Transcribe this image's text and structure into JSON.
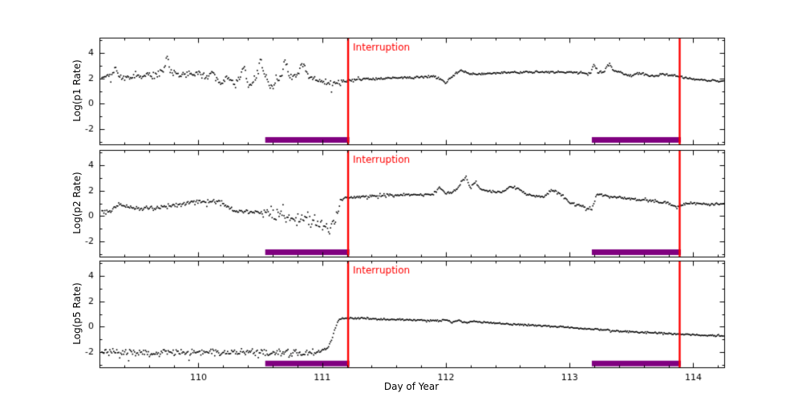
{
  "figure": {
    "background": "#ffffff",
    "xlabel": "Day of Year",
    "annotation_label": "Interruption",
    "x_range": [
      109.2,
      114.25
    ],
    "x_ticks": [
      110,
      111,
      112,
      113,
      114
    ],
    "x_minor_tick_step": 0.2,
    "y_minor_tick_step": 1,
    "x_data_start": 109.22,
    "point_step": 0.008,
    "colors": {
      "data": "#000000",
      "interruption_line": "#fe0000",
      "annotation_text": "#fe0000",
      "coverage_bar": "#800080",
      "frame": "#000000"
    }
  },
  "chart_data": [
    {
      "type": "scatter",
      "ylabel": "Log(p1 Rate)",
      "y_range": [
        -3.2,
        5.2
      ],
      "y_ticks": [
        -2,
        0,
        2,
        4
      ],
      "interruption_lines_x": [
        111.21,
        113.89
      ],
      "coverage_bars": [
        [
          110.54,
          111.22
        ],
        [
          113.18,
          113.9
        ]
      ],
      "coverage_bar_y": -2.85,
      "noise": [
        {
          "until": 111.18,
          "amp": 0.16
        },
        {
          "until": 114.3,
          "amp": 0.05
        }
      ],
      "series_keypoints": [
        [
          109.2,
          2.1
        ],
        [
          109.3,
          2.2
        ],
        [
          109.33,
          3.0
        ],
        [
          109.36,
          2.1
        ],
        [
          109.45,
          2.0
        ],
        [
          109.5,
          2.3
        ],
        [
          109.55,
          2.2
        ],
        [
          109.6,
          2.4
        ],
        [
          109.63,
          2.2
        ],
        [
          109.68,
          2.3
        ],
        [
          109.72,
          2.5
        ],
        [
          109.75,
          3.9
        ],
        [
          109.77,
          2.5
        ],
        [
          109.85,
          2.3
        ],
        [
          109.95,
          2.3
        ],
        [
          110.0,
          2.5
        ],
        [
          110.03,
          2.2
        ],
        [
          110.08,
          2.1
        ],
        [
          110.12,
          2.5
        ],
        [
          110.15,
          1.8
        ],
        [
          110.2,
          1.6
        ],
        [
          110.23,
          2.2
        ],
        [
          110.27,
          1.9
        ],
        [
          110.3,
          1.5
        ],
        [
          110.33,
          2.1
        ],
        [
          110.37,
          3.0
        ],
        [
          110.4,
          1.6
        ],
        [
          110.43,
          1.4
        ],
        [
          110.47,
          2.2
        ],
        [
          110.5,
          3.6
        ],
        [
          110.53,
          2.4
        ],
        [
          110.57,
          1.6
        ],
        [
          110.6,
          1.1
        ],
        [
          110.63,
          1.9
        ],
        [
          110.67,
          2.2
        ],
        [
          110.7,
          3.4
        ],
        [
          110.73,
          2.4
        ],
        [
          110.77,
          2.1
        ],
        [
          110.8,
          2.2
        ],
        [
          110.83,
          2.9
        ],
        [
          110.85,
          3.3
        ],
        [
          110.88,
          2.3
        ],
        [
          110.92,
          2.0
        ],
        [
          110.95,
          1.9
        ],
        [
          111.0,
          1.75
        ],
        [
          111.05,
          1.7
        ],
        [
          111.1,
          1.65
        ],
        [
          111.15,
          1.7
        ],
        [
          111.2,
          1.8
        ],
        [
          111.25,
          1.85
        ],
        [
          111.35,
          1.95
        ],
        [
          111.5,
          2.0
        ],
        [
          111.65,
          2.05
        ],
        [
          111.8,
          2.1
        ],
        [
          111.9,
          2.15
        ],
        [
          111.97,
          1.9
        ],
        [
          112.0,
          1.6
        ],
        [
          112.03,
          2.0
        ],
        [
          112.07,
          2.3
        ],
        [
          112.12,
          2.6
        ],
        [
          112.18,
          2.4
        ],
        [
          112.25,
          2.3
        ],
        [
          112.35,
          2.4
        ],
        [
          112.5,
          2.45
        ],
        [
          112.65,
          2.5
        ],
        [
          112.8,
          2.5
        ],
        [
          112.95,
          2.5
        ],
        [
          113.1,
          2.45
        ],
        [
          113.17,
          2.4
        ],
        [
          113.2,
          3.1
        ],
        [
          113.23,
          2.4
        ],
        [
          113.28,
          2.5
        ],
        [
          113.32,
          3.3
        ],
        [
          113.35,
          2.6
        ],
        [
          113.4,
          2.5
        ],
        [
          113.45,
          2.3
        ],
        [
          113.5,
          2.2
        ],
        [
          113.55,
          2.4
        ],
        [
          113.6,
          2.35
        ],
        [
          113.65,
          2.2
        ],
        [
          113.7,
          2.15
        ],
        [
          113.75,
          2.3
        ],
        [
          113.8,
          2.25
        ],
        [
          113.85,
          2.2
        ],
        [
          113.9,
          2.1
        ],
        [
          114.0,
          1.95
        ],
        [
          114.1,
          1.85
        ],
        [
          114.25,
          1.75
        ]
      ]
    },
    {
      "type": "scatter",
      "ylabel": "Log(p2 Rate)",
      "y_range": [
        -3.2,
        5.2
      ],
      "y_ticks": [
        -2,
        0,
        2,
        4
      ],
      "interruption_lines_x": [
        111.21,
        113.89
      ],
      "coverage_bars": [
        [
          110.54,
          111.22
        ],
        [
          113.18,
          113.9
        ]
      ],
      "coverage_bar_y": -2.85,
      "noise": [
        {
          "until": 110.55,
          "amp": 0.1
        },
        {
          "until": 111.13,
          "amp": 0.3
        },
        {
          "until": 114.3,
          "amp": 0.06
        }
      ],
      "series_keypoints": [
        [
          109.2,
          0.2
        ],
        [
          109.3,
          0.4
        ],
        [
          109.35,
          0.9
        ],
        [
          109.4,
          0.8
        ],
        [
          109.5,
          0.55
        ],
        [
          109.6,
          0.6
        ],
        [
          109.7,
          0.7
        ],
        [
          109.8,
          0.8
        ],
        [
          109.9,
          1.05
        ],
        [
          110.0,
          1.2
        ],
        [
          110.05,
          1.15
        ],
        [
          110.1,
          1.1
        ],
        [
          110.15,
          1.15
        ],
        [
          110.2,
          1.0
        ],
        [
          110.25,
          0.6
        ],
        [
          110.3,
          0.4
        ],
        [
          110.4,
          0.3
        ],
        [
          110.5,
          0.35
        ],
        [
          110.55,
          0.3
        ],
        [
          110.6,
          0.15
        ],
        [
          110.65,
          0.0
        ],
        [
          110.7,
          -0.1
        ],
        [
          110.75,
          -0.25
        ],
        [
          110.8,
          -0.3
        ],
        [
          110.85,
          -0.2
        ],
        [
          110.9,
          -0.4
        ],
        [
          110.95,
          -0.55
        ],
        [
          111.0,
          -0.8
        ],
        [
          111.05,
          -1.0
        ],
        [
          111.08,
          -0.9
        ],
        [
          111.1,
          -0.6
        ],
        [
          111.12,
          -0.2
        ],
        [
          111.15,
          1.3
        ],
        [
          111.2,
          1.45
        ],
        [
          111.3,
          1.5
        ],
        [
          111.4,
          1.55
        ],
        [
          111.5,
          1.65
        ],
        [
          111.6,
          1.6
        ],
        [
          111.7,
          1.7
        ],
        [
          111.8,
          1.65
        ],
        [
          111.9,
          1.75
        ],
        [
          111.95,
          2.2
        ],
        [
          112.0,
          1.8
        ],
        [
          112.05,
          1.9
        ],
        [
          112.1,
          2.2
        ],
        [
          112.13,
          2.8
        ],
        [
          112.16,
          3.0
        ],
        [
          112.2,
          2.2
        ],
        [
          112.24,
          2.7
        ],
        [
          112.28,
          2.1
        ],
        [
          112.35,
          1.95
        ],
        [
          112.45,
          1.85
        ],
        [
          112.52,
          2.3
        ],
        [
          112.58,
          2.2
        ],
        [
          112.65,
          1.7
        ],
        [
          112.72,
          1.55
        ],
        [
          112.8,
          1.5
        ],
        [
          112.85,
          2.1
        ],
        [
          112.9,
          1.9
        ],
        [
          112.95,
          1.5
        ],
        [
          113.0,
          1.05
        ],
        [
          113.05,
          0.9
        ],
        [
          113.1,
          0.8
        ],
        [
          113.15,
          0.55
        ],
        [
          113.18,
          0.5
        ],
        [
          113.22,
          1.7
        ],
        [
          113.3,
          1.55
        ],
        [
          113.4,
          1.45
        ],
        [
          113.5,
          1.35
        ],
        [
          113.6,
          1.25
        ],
        [
          113.7,
          1.15
        ],
        [
          113.8,
          1.0
        ],
        [
          113.85,
          0.75
        ],
        [
          113.9,
          0.85
        ],
        [
          113.95,
          1.0
        ],
        [
          114.05,
          1.0
        ],
        [
          114.15,
          0.9
        ],
        [
          114.25,
          1.0
        ]
      ]
    },
    {
      "type": "scatter",
      "ylabel": "Log(p5 Rate)",
      "y_range": [
        -3.2,
        5.2
      ],
      "y_ticks": [
        -2,
        0,
        2,
        4
      ],
      "interruption_lines_x": [
        111.21,
        113.89
      ],
      "coverage_bars": [
        [
          110.54,
          111.22
        ],
        [
          113.18,
          113.9
        ]
      ],
      "coverage_bar_y": -2.9,
      "noise": [
        {
          "until": 111.02,
          "amp": 0.17
        },
        {
          "until": 114.3,
          "amp": 0.04
        }
      ],
      "series_keypoints": [
        [
          109.2,
          -2.0
        ],
        [
          109.6,
          -2.05
        ],
        [
          110.0,
          -2.05
        ],
        [
          110.4,
          -2.0
        ],
        [
          110.7,
          -2.05
        ],
        [
          110.9,
          -2.05
        ],
        [
          111.0,
          -2.0
        ],
        [
          111.05,
          -1.6
        ],
        [
          111.08,
          -1.0
        ],
        [
          111.1,
          -0.3
        ],
        [
          111.13,
          0.5
        ],
        [
          111.17,
          0.65
        ],
        [
          111.25,
          0.7
        ],
        [
          111.4,
          0.6
        ],
        [
          111.6,
          0.55
        ],
        [
          111.8,
          0.5
        ],
        [
          111.95,
          0.45
        ],
        [
          112.0,
          0.55
        ],
        [
          112.05,
          0.35
        ],
        [
          112.1,
          0.5
        ],
        [
          112.15,
          0.3
        ],
        [
          112.2,
          0.4
        ],
        [
          112.3,
          0.35
        ],
        [
          112.4,
          0.3
        ],
        [
          112.5,
          0.2
        ],
        [
          112.6,
          0.15
        ],
        [
          112.7,
          0.1
        ],
        [
          112.8,
          0.05
        ],
        [
          112.9,
          0.0
        ],
        [
          113.0,
          -0.05
        ],
        [
          113.1,
          -0.15
        ],
        [
          113.2,
          -0.2
        ],
        [
          113.3,
          -0.25
        ],
        [
          113.4,
          -0.35
        ],
        [
          113.5,
          -0.4
        ],
        [
          113.6,
          -0.45
        ],
        [
          113.7,
          -0.5
        ],
        [
          113.8,
          -0.55
        ],
        [
          113.9,
          -0.6
        ],
        [
          114.0,
          -0.65
        ],
        [
          114.1,
          -0.7
        ],
        [
          114.25,
          -0.75
        ]
      ]
    }
  ]
}
